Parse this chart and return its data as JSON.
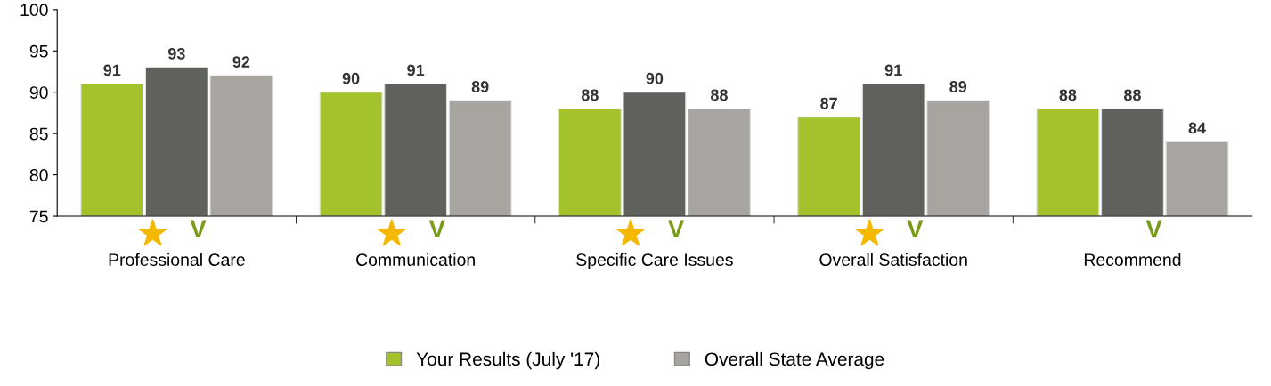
{
  "chart_data": {
    "type": "bar",
    "categories": [
      "Professional Care",
      "Communication",
      "Specific Care Issues",
      "Overall Satisfaction",
      "Recommend"
    ],
    "series": [
      {
        "name": "Your Results (July '17)",
        "color": "#a4c22b",
        "values": [
          91,
          90,
          88,
          87,
          88
        ]
      },
      {
        "color": "#5f625c",
        "values": [
          93,
          91,
          90,
          91,
          88
        ]
      },
      {
        "name": "Overall State Average",
        "color": "#a8a5a0",
        "values": [
          92,
          89,
          88,
          89,
          84
        ]
      }
    ],
    "ylim": [
      75,
      100
    ],
    "yticks": [
      75,
      80,
      85,
      90,
      95,
      100
    ],
    "data_labels": true,
    "legend": "bottom",
    "grid": false,
    "annotations": [
      "V",
      "V",
      "V",
      "V",
      "V"
    ]
  }
}
